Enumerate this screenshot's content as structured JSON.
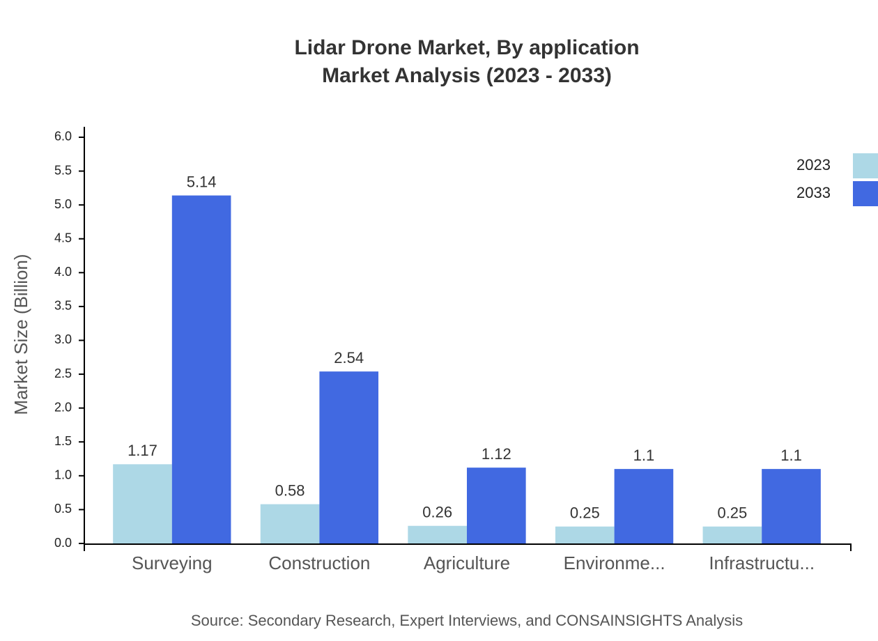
{
  "chart_data": {
    "type": "bar",
    "title": "Lidar Drone Market, By application",
    "subtitle": "Market Analysis (2023 - 2033)",
    "y_label": "Market Size (Billion)",
    "source": "Source: Secondary Research, Expert Interviews, and CONSAINSIGHTS Analysis",
    "categories": [
      "Surveying",
      "Construction",
      "Agriculture",
      "Environme...",
      "Infrastructu..."
    ],
    "series": [
      {
        "name": "2023",
        "color": "#add8e6",
        "values": [
          1.17,
          0.58,
          0.26,
          0.25,
          0.25
        ]
      },
      {
        "name": "2033",
        "color": "#4169e1",
        "values": [
          5.14,
          2.54,
          1.12,
          1.1,
          1.1
        ]
      }
    ],
    "ylim": [
      0,
      6.15
    ],
    "yticks": [
      {
        "value": 0,
        "label": "0.0"
      },
      0.5,
      {
        "value": 1,
        "label": "1.0"
      },
      1.5,
      {
        "value": 2,
        "label": "2.0"
      },
      2.5,
      {
        "value": 3,
        "label": "3.0"
      },
      3.5,
      {
        "value": 4,
        "label": "4.0"
      },
      4.5,
      {
        "value": 5,
        "label": "5.0"
      },
      5.5,
      {
        "value": 6,
        "label": "6.0"
      }
    ],
    "legend_position": "top-right",
    "grid": false
  }
}
